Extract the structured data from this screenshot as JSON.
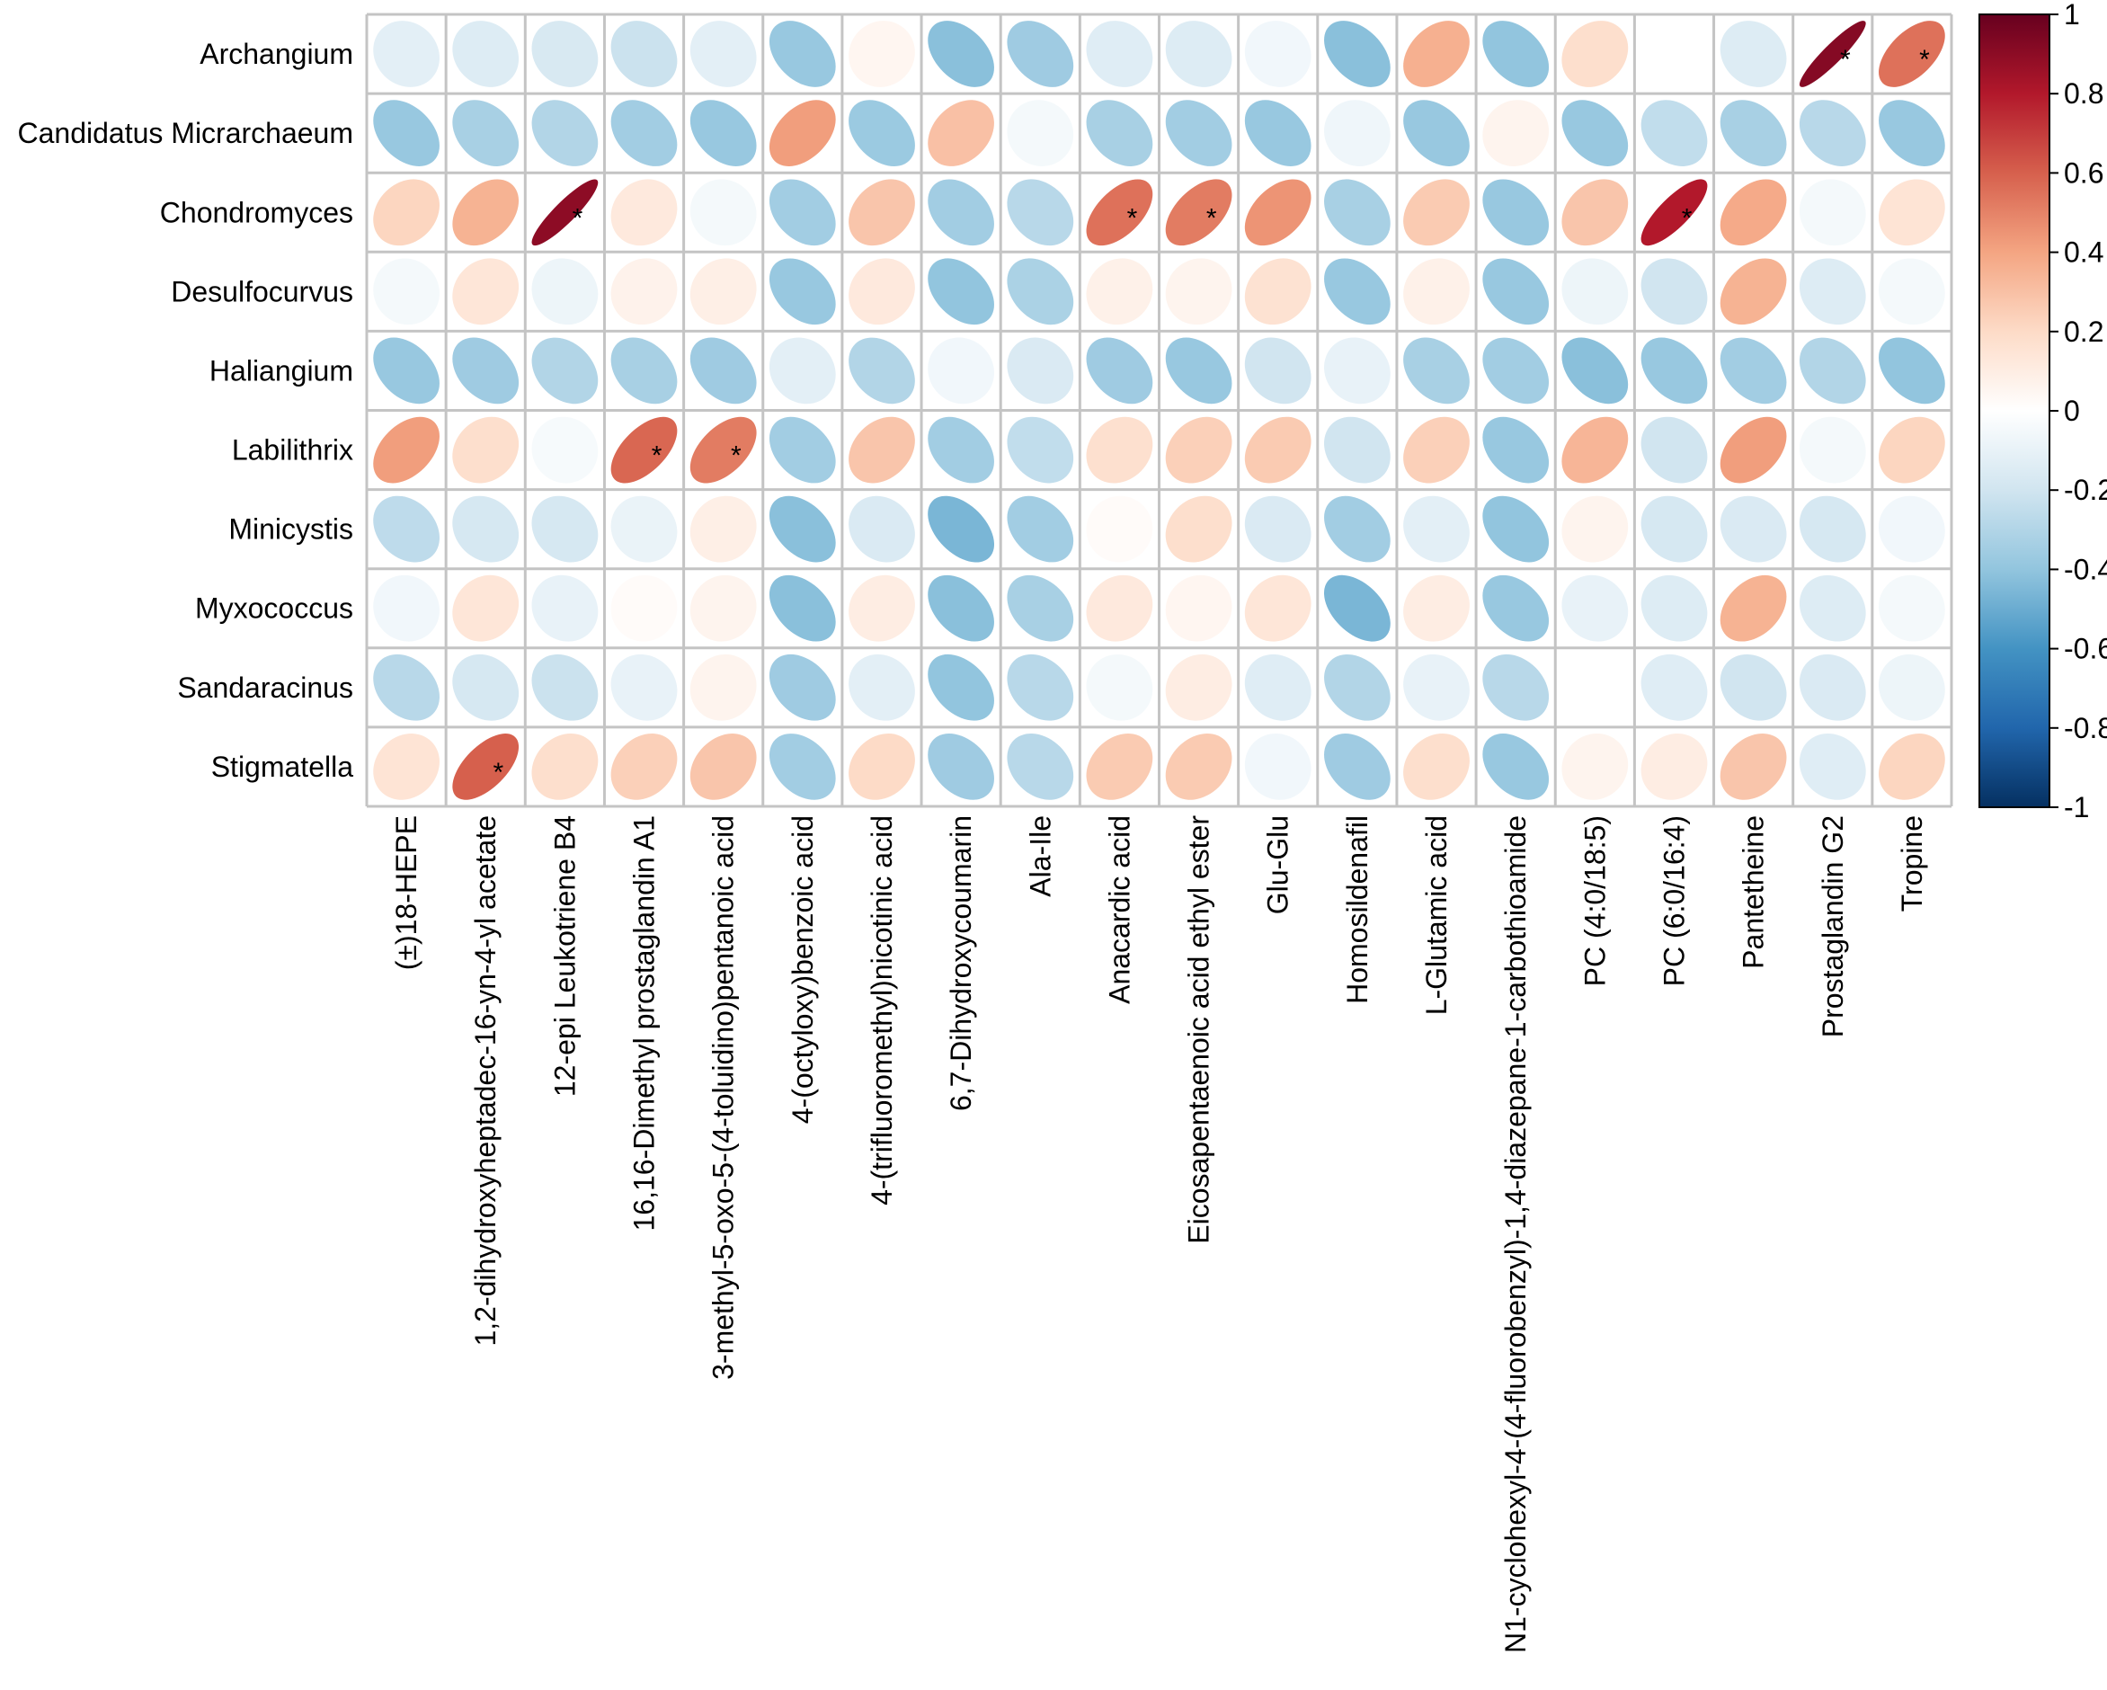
{
  "chart_data": {
    "type": "heatmap",
    "subtype": "correlation-ellipse",
    "rows": [
      "Archangium",
      "Candidatus Micrarchaeum",
      "Chondromyces",
      "Desulfocurvus",
      "Haliangium",
      "Labilithrix",
      "Minicystis",
      "Myxococcus",
      "Sandaracinus",
      "Stigmatella"
    ],
    "columns": [
      "(±)18-HEPE",
      "1,2-dihydroxyheptadec-16-yn-4-yl acetate",
      "12-epi Leukotriene B4",
      "16,16-Dimethyl prostaglandin A1",
      "3-methyl-5-oxo-5-(4-toluidino)pentanoic acid",
      "4-(octyloxy)benzoic acid",
      "4-(trifluoromethyl)nicotinic acid",
      "6,7-Dihydroxycoumarin",
      "Ala-Ile",
      "Anacardic acid",
      "Eicosapentaenoic acid ethyl ester",
      "Glu-Glu",
      "Homosildenafil",
      "L-Glutamic acid",
      "N1-cyclohexyl-4-(4-fluorobenzyl)-1,4-diazepane-1-carbothioamide",
      "PC (4:0/18:5)",
      "PC (6:0/16:4)",
      "Pantetheine",
      "Prostaglandin G2",
      "Tropine"
    ],
    "values": [
      [
        -0.12,
        -0.15,
        -0.17,
        -0.22,
        -0.12,
        -0.38,
        0.05,
        -0.42,
        -0.36,
        -0.14,
        -0.15,
        -0.06,
        -0.42,
        0.36,
        -0.4,
        0.18,
        0.0,
        -0.15,
        0.92,
        0.55
      ],
      [
        -0.38,
        -0.33,
        -0.3,
        -0.35,
        -0.38,
        0.42,
        -0.37,
        0.3,
        -0.05,
        -0.33,
        -0.35,
        -0.38,
        -0.07,
        -0.38,
        0.06,
        -0.38,
        -0.25,
        -0.33,
        -0.28,
        -0.38
      ],
      [
        0.22,
        0.35,
        0.9,
        0.12,
        -0.05,
        -0.35,
        0.28,
        -0.35,
        -0.28,
        0.55,
        0.52,
        0.45,
        -0.33,
        0.26,
        -0.38,
        0.28,
        0.8,
        0.38,
        -0.05,
        0.15
      ],
      [
        -0.05,
        0.14,
        -0.08,
        0.07,
        0.09,
        -0.38,
        0.12,
        -0.4,
        -0.32,
        0.08,
        0.06,
        0.16,
        -0.38,
        0.08,
        -0.38,
        -0.08,
        -0.2,
        0.35,
        -0.15,
        -0.05
      ],
      [
        -0.38,
        -0.36,
        -0.3,
        -0.33,
        -0.36,
        -0.12,
        -0.3,
        -0.06,
        -0.16,
        -0.36,
        -0.38,
        -0.2,
        -0.1,
        -0.33,
        -0.35,
        -0.42,
        -0.38,
        -0.35,
        -0.3,
        -0.4
      ],
      [
        0.42,
        0.18,
        -0.04,
        0.58,
        0.52,
        -0.35,
        0.28,
        -0.35,
        -0.25,
        0.17,
        0.24,
        0.26,
        -0.2,
        0.24,
        -0.38,
        0.34,
        -0.2,
        0.42,
        -0.05,
        0.22
      ],
      [
        -0.26,
        -0.18,
        -0.18,
        -0.09,
        0.09,
        -0.42,
        -0.16,
        -0.46,
        -0.35,
        0.02,
        0.18,
        -0.16,
        -0.35,
        -0.12,
        -0.4,
        0.06,
        -0.18,
        -0.16,
        -0.18,
        -0.06
      ],
      [
        -0.06,
        0.14,
        -0.1,
        0.02,
        0.06,
        -0.42,
        0.1,
        -0.42,
        -0.33,
        0.12,
        0.05,
        0.14,
        -0.46,
        0.1,
        -0.38,
        -0.1,
        -0.15,
        0.35,
        -0.15,
        -0.05
      ],
      [
        -0.28,
        -0.18,
        -0.22,
        -0.1,
        0.06,
        -0.36,
        -0.12,
        -0.4,
        -0.28,
        -0.05,
        0.1,
        -0.14,
        -0.3,
        -0.1,
        -0.28,
        0.0,
        -0.14,
        -0.2,
        -0.16,
        -0.08
      ],
      [
        0.15,
        0.6,
        0.18,
        0.24,
        0.28,
        -0.35,
        0.2,
        -0.36,
        -0.28,
        0.26,
        0.26,
        -0.06,
        -0.36,
        0.18,
        -0.38,
        0.06,
        0.1,
        0.28,
        -0.14,
        0.22
      ]
    ],
    "significant": [
      [
        0,
        18
      ],
      [
        0,
        19
      ],
      [
        2,
        2
      ],
      [
        2,
        9
      ],
      [
        2,
        10
      ],
      [
        2,
        16
      ],
      [
        5,
        3
      ],
      [
        5,
        4
      ],
      [
        9,
        1
      ]
    ],
    "significance_marker": "*",
    "colorbar": {
      "range": [
        -1,
        1
      ],
      "ticks": [
        "1",
        "0.8",
        "0.6",
        "0.4",
        "0.2",
        "0",
        "-0.2",
        "-0.4",
        "-0.6",
        "-0.8",
        "-1"
      ],
      "colors": [
        "#67001f",
        "#b2182b",
        "#d6604d",
        "#f4a582",
        "#fddbc7",
        "#ffffff",
        "#d1e5f0",
        "#92c5de",
        "#4393c3",
        "#2166ac",
        "#053061"
      ]
    },
    "title": "",
    "xlabel": "",
    "ylabel": "",
    "grid": true
  }
}
